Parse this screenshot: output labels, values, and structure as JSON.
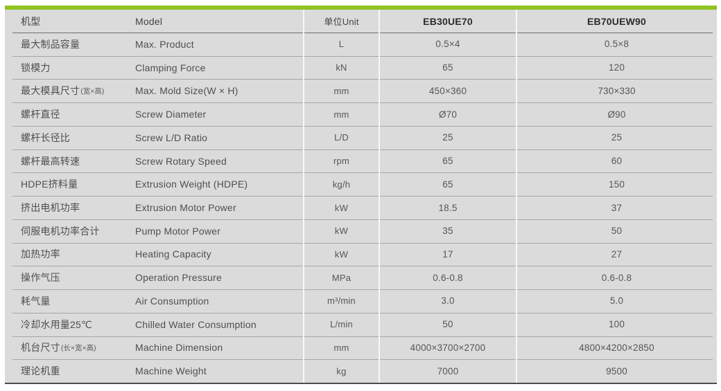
{
  "theme": {
    "accent_green": "#8fc31f",
    "table_bg": "#dbdbdb",
    "row_line": "#a6a6a6",
    "header_line": "#6f6f6f",
    "bottom_line": "#4c4c4c",
    "text": "#4f4f4f"
  },
  "table": {
    "headers": {
      "type_cn": "机型",
      "model": "Model",
      "unit": "单位Unit",
      "model_a": "EB30UE70",
      "model_b": "EB70UEW90"
    },
    "rows": [
      {
        "cn": "最大制品容量",
        "cn_small": "",
        "en": "Max. Product",
        "unit": "L",
        "v1": "0.5×4",
        "v2": "0.5×8"
      },
      {
        "cn": "锁模力",
        "cn_small": "",
        "en": "Clamping Force",
        "unit": "kN",
        "v1": "65",
        "v2": "120"
      },
      {
        "cn": "最大模具尺寸",
        "cn_small": "(宽×高)",
        "en": "Max. Mold Size(W × H)",
        "unit": "mm",
        "v1": "450×360",
        "v2": "730×330"
      },
      {
        "cn": "螺杆直径",
        "cn_small": "",
        "en": "Screw Diameter",
        "unit": "mm",
        "v1": "Ø70",
        "v2": "Ø90"
      },
      {
        "cn": "螺杆长径比",
        "cn_small": "",
        "en": "Screw L/D Ratio",
        "unit": "L/D",
        "v1": "25",
        "v2": "25"
      },
      {
        "cn": "螺杆最高转速",
        "cn_small": "",
        "en": "Screw Rotary Speed",
        "unit": "rpm",
        "v1": "65",
        "v2": "60"
      },
      {
        "cn": "HDPE挤料量",
        "cn_small": "",
        "en": "Extrusion Weight (HDPE)",
        "unit": "kg/h",
        "v1": "65",
        "v2": "150"
      },
      {
        "cn": "挤出电机功率",
        "cn_small": "",
        "en": "Extrusion Motor Power",
        "unit": "kW",
        "v1": "18.5",
        "v2": "37"
      },
      {
        "cn": "伺服电机功率合计",
        "cn_small": "",
        "en": "Pump Motor Power",
        "unit": "kW",
        "v1": "35",
        "v2": "50"
      },
      {
        "cn": "加热功率",
        "cn_small": "",
        "en": "Heating Capacity",
        "unit": "kW",
        "v1": "17",
        "v2": "27"
      },
      {
        "cn": "操作气压",
        "cn_small": "",
        "en": "Operation Pressure",
        "unit": "MPa",
        "v1": "0.6-0.8",
        "v2": "0.6-0.8"
      },
      {
        "cn": "耗气量",
        "cn_small": "",
        "en": "Air Consumption",
        "unit": "m³/min",
        "v1": "3.0",
        "v2": "5.0"
      },
      {
        "cn": "冷却水用量25℃",
        "cn_small": "",
        "en": "Chilled Water Consumption",
        "unit": "L/min",
        "v1": "50",
        "v2": "100"
      },
      {
        "cn": "机台尺寸",
        "cn_small": "(长×宽×高)",
        "en": "Machine Dimension",
        "unit": "mm",
        "v1": "4000×3700×2700",
        "v2": "4800×4200×2850"
      },
      {
        "cn": "理论机重",
        "cn_small": "",
        "en": "Machine Weight",
        "unit": "kg",
        "v1": "7000",
        "v2": "9500"
      }
    ]
  }
}
